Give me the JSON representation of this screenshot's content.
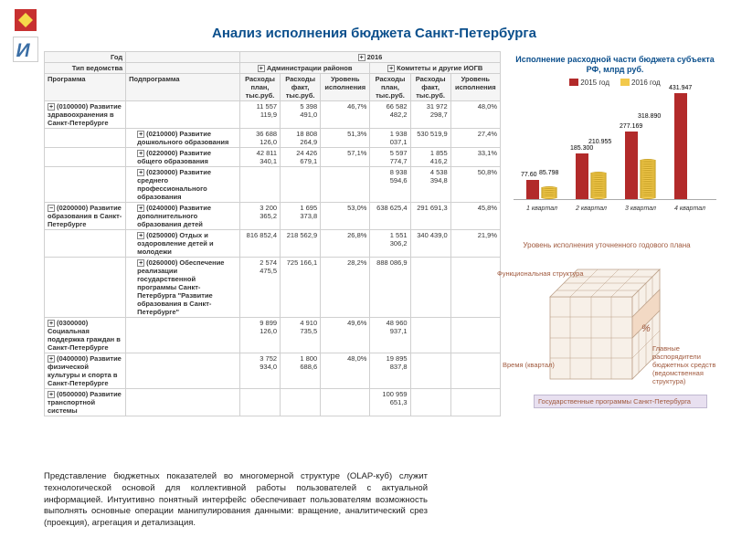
{
  "title": "Анализ исполнения бюджета Санкт-Петербурга",
  "table": {
    "h_god": "Год",
    "h_tip": "Тип ведомства",
    "h_prog": "Программа",
    "h_subprog": "Подпрограмма",
    "h_2016": "2016",
    "h_admin": "Администрации районов",
    "h_komitet": "Комитеты и другие ИОГВ",
    "h_rplan": "Расходы план, тыс.руб.",
    "h_rfakt": "Расходы факт, тыс.руб.",
    "h_urov": "Уровень исполнения",
    "rows": [
      {
        "p": "(0100000) Развитие здравоохранения в Санкт-Петербурге",
        "s": "",
        "a": "11 557 119,9",
        "b": "5 398 491,0",
        "c": "46,7%",
        "d": "66 582 482,2",
        "e": "31 972 298,7",
        "f": "48,0%"
      },
      {
        "p": "",
        "s": "(0210000) Развитие дошкольного образования",
        "a": "36 688 126,0",
        "b": "18 808 264,9",
        "c": "51,3%",
        "d": "1 938 037,1",
        "e": "530 519,9",
        "f": "27,4%"
      },
      {
        "p": "",
        "s": "(0220000) Развитие общего образования",
        "a": "42 811 340,1",
        "b": "24 426 679,1",
        "c": "57,1%",
        "d": "5 597 774,7",
        "e": "1 855 416,2",
        "f": "33,1%"
      },
      {
        "p": "",
        "s": "(0230000) Развитие среднего профессионального образования",
        "a": "",
        "b": "",
        "c": "",
        "d": "8 938 594,6",
        "e": "4 538 394,8",
        "f": "50,8%"
      },
      {
        "p": "(0200000) Развитие образования в Санкт-Петербурге",
        "s": "(0240000) Развитие дополнительного образования детей",
        "a": "3 200 365,2",
        "b": "1 695 373,8",
        "c": "53,0%",
        "d": "638 625,4",
        "e": "291 691,3",
        "f": "45,8%"
      },
      {
        "p": "",
        "s": "(0250000) Отдых и оздоровление детей и молодежи",
        "a": "816 852,4",
        "b": "218 562,9",
        "c": "26,8%",
        "d": "1 551 306,2",
        "e": "340 439,0",
        "f": "21,9%"
      },
      {
        "p": "",
        "s": "(0260000) Обеспечение реализации государственной программы Санкт-Петербурга \"Развитие образования в Санкт-Петербурге\"",
        "a": "2 574 475,5",
        "b": "725 166,1",
        "c": "28,2%",
        "d": "888 086,9",
        "e": "",
        "f": ""
      },
      {
        "p": "(0300000) Социальная поддержка граждан в Санкт-Петербурге",
        "s": "",
        "a": "9 899 126,0",
        "b": "4 910 735,5",
        "c": "49,6%",
        "d": "48 960 937,1",
        "e": "",
        "f": ""
      },
      {
        "p": "(0400000) Развитие физической культуры и спорта в Санкт-Петербурге",
        "s": "",
        "a": "3 752 934,0",
        "b": "1 800 688,6",
        "c": "48,0%",
        "d": "19 895 837,8",
        "e": "",
        "f": ""
      },
      {
        "p": "(0500000) Развитие транспортной системы",
        "s": "",
        "a": "",
        "b": "",
        "c": "",
        "d": "100 959 651,3",
        "e": "",
        "f": ""
      }
    ]
  },
  "chart": {
    "title": "Исполнение расходной части бюджета субъекта РФ, млрд руб.",
    "legend2015": "2015 год",
    "legend2016": "2016 год",
    "color2015": "#b22a2a",
    "color2016": "#f2c94c",
    "ymax": 450,
    "groups": [
      {
        "x": "1 квартал",
        "v2015": 77.6,
        "v2016": 85.798,
        "l2015": "77.60",
        "l2016": "85.798"
      },
      {
        "x": "2 квартал",
        "v2015": 185.3,
        "v2016": 210.955,
        "l2015": "185.300",
        "l2016": "210.955"
      },
      {
        "x": "3 квартал",
        "v2015": 277.169,
        "v2016": 318.89,
        "l2015": "277.169",
        "l2016": "318.890"
      },
      {
        "x": "4 квартал",
        "v2015": 431.947,
        "v2016": 0,
        "l2015": "431.947",
        "l2016": ""
      }
    ]
  },
  "cube": {
    "title": "Уровень исполнения уточненного годового плана",
    "ax_func": "Функциональная структура",
    "ax_time": "Время (квартал)",
    "ax_grbs": "Главные распорядители бюджетных средств (ведомственная структура)",
    "ax_prog": "Государственные программы Санкт-Петербурга",
    "pct": "%"
  },
  "desc": "Представление бюджетных показателей во многомерной структуре (OLAP-куб) служит технологической основой для коллективной работы пользователей с актуальной информацией. Интуитивно понятный интерфейс обеспечивает пользователям возможность выполнять основные операции манипулирования данными: вращение, аналитический срез (проекция), агрегация и детализация."
}
